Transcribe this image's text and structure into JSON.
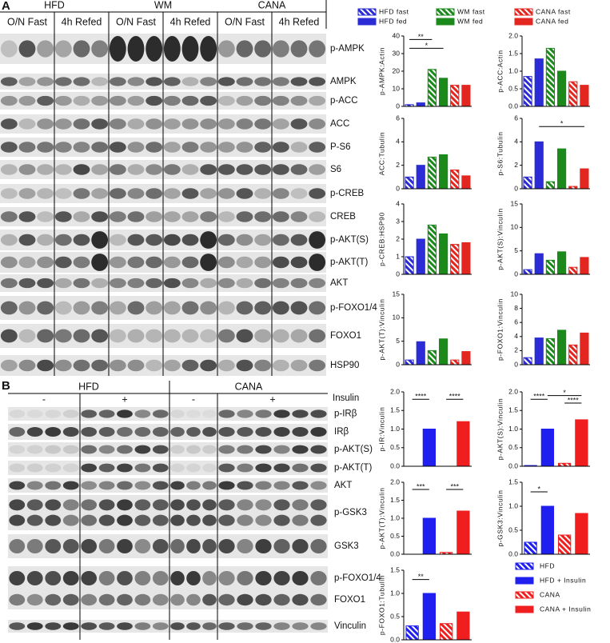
{
  "panel_a": {
    "letter": "A",
    "groups": [
      "HFD",
      "WM",
      "CANA"
    ],
    "conditions": [
      "O/N Fast",
      "4h Refed",
      "O/N Fast",
      "4h Refed",
      "O/N Fast",
      "4h Refed"
    ],
    "blots": [
      "p-AMPK",
      "AMPK",
      "p-ACC",
      "ACC",
      "P-S6",
      "S6",
      "p-CREB",
      "CREB",
      "p-AKT(S)",
      "p-AKT(T)",
      "AKT",
      "p-FOXO1/4",
      "FOXO1",
      "HSP90"
    ],
    "legend": [
      {
        "name": "HFD fast",
        "color": "#2c2cd6",
        "hatched": true
      },
      {
        "name": "WM fast",
        "color": "#1b8a1b",
        "hatched": true
      },
      {
        "name": "CANA fast",
        "color": "#e3261f",
        "hatched": true
      },
      {
        "name": "HFD fed",
        "color": "#2c2cd6",
        "hatched": false
      },
      {
        "name": "WM fed",
        "color": "#1b8a1b",
        "hatched": false
      },
      {
        "name": "CANA fed",
        "color": "#e3261f",
        "hatched": false
      }
    ]
  },
  "panel_b": {
    "letter": "B",
    "groups": [
      "HFD",
      "CANA"
    ],
    "insulin": [
      "-",
      "+",
      "-",
      "+"
    ],
    "insulin_label": "Insulin",
    "blots": [
      "p-IRβ",
      "IRβ",
      "p-AKT(S)",
      "p-AKT(T)",
      "AKT",
      "p-GSK3",
      "GSK3",
      "p-FOXO1/4",
      "FOXO1",
      "Vinculin"
    ],
    "legend": [
      {
        "name": "HFD",
        "color": "#1f1ff0",
        "hatched": true
      },
      {
        "name": "HFD + Insulin",
        "color": "#1f1ff0",
        "hatched": false
      },
      {
        "name": "CANA",
        "color": "#f01e1e",
        "hatched": true
      },
      {
        "name": "CANA + Insulin",
        "color": "#f01e1e",
        "hatched": false
      }
    ]
  },
  "chart_data": [
    {
      "type": "bar",
      "ylabel": "p-AMPK:Actin",
      "values": [
        1,
        2,
        21,
        16,
        12,
        12
      ],
      "colors": [
        "#2c2cd6",
        "#2c2cd6",
        "#1b8a1b",
        "#1b8a1b",
        "#e3261f",
        "#e3261f"
      ],
      "hatched": [
        true,
        false,
        true,
        false,
        true,
        false
      ],
      "ylim": [
        0,
        40
      ],
      "yticks": [
        0,
        10,
        20,
        30,
        40
      ],
      "annotations": [
        {
          "text": "**",
          "from": 0,
          "to": 2,
          "y": 38
        },
        {
          "text": "*",
          "from": 0,
          "to": 3,
          "y": 33
        }
      ]
    },
    {
      "type": "bar",
      "ylabel": "p-ACC:Actin",
      "values": [
        0.85,
        1.35,
        1.65,
        1.0,
        0.7,
        0.6
      ],
      "colors": [
        "#2c2cd6",
        "#2c2cd6",
        "#1b8a1b",
        "#1b8a1b",
        "#e3261f",
        "#e3261f"
      ],
      "hatched": [
        true,
        false,
        true,
        false,
        true,
        false
      ],
      "ylim": [
        0,
        2
      ],
      "yticks": [
        {
          "value": 0,
          "label": "0.0"
        },
        0.5,
        {
          "value": 1,
          "label": "1.0"
        },
        1.5,
        {
          "value": 2,
          "label": "2.0"
        }
      ],
      "annotations": []
    },
    {
      "type": "bar",
      "ylabel": "ACC:Tubulin",
      "values": [
        1.0,
        2.0,
        2.7,
        2.9,
        1.6,
        1.1
      ],
      "colors": [
        "#2c2cd6",
        "#2c2cd6",
        "#1b8a1b",
        "#1b8a1b",
        "#e3261f",
        "#e3261f"
      ],
      "hatched": [
        true,
        false,
        true,
        false,
        true,
        false
      ],
      "ylim": [
        0,
        6
      ],
      "yticks": [
        0,
        2,
        4,
        6
      ],
      "annotations": []
    },
    {
      "type": "bar",
      "ylabel": "p-S6:Tubulin",
      "values": [
        1.0,
        4.0,
        0.6,
        3.4,
        0.2,
        1.7
      ],
      "colors": [
        "#2c2cd6",
        "#2c2cd6",
        "#1b8a1b",
        "#1b8a1b",
        "#e3261f",
        "#e3261f"
      ],
      "hatched": [
        true,
        false,
        true,
        false,
        true,
        false
      ],
      "ylim": [
        0,
        6
      ],
      "yticks": [
        0,
        2,
        4,
        6
      ],
      "annotations": [
        {
          "text": "*",
          "from": 1,
          "to": 5,
          "y": 5.3
        }
      ]
    },
    {
      "type": "bar",
      "ylabel": "p-CREB:HSP90",
      "values": [
        1.0,
        2.0,
        2.8,
        2.3,
        1.7,
        1.8
      ],
      "colors": [
        "#2c2cd6",
        "#2c2cd6",
        "#1b8a1b",
        "#1b8a1b",
        "#e3261f",
        "#e3261f"
      ],
      "hatched": [
        true,
        false,
        true,
        false,
        true,
        false
      ],
      "ylim": [
        0,
        4
      ],
      "yticks": [
        0,
        1,
        2,
        3,
        4
      ],
      "annotations": []
    },
    {
      "type": "bar",
      "ylabel": "p-AKT(S):Vinculin",
      "values": [
        1.0,
        4.4,
        3.0,
        4.8,
        1.5,
        3.6
      ],
      "colors": [
        "#2c2cd6",
        "#2c2cd6",
        "#1b8a1b",
        "#1b8a1b",
        "#e3261f",
        "#e3261f"
      ],
      "hatched": [
        true,
        false,
        true,
        false,
        true,
        false
      ],
      "ylim": [
        0,
        15
      ],
      "yticks": [
        0,
        5,
        10,
        15
      ],
      "annotations": []
    },
    {
      "type": "bar",
      "ylabel": "p-AKT(T):Vinculin",
      "values": [
        1.0,
        4.9,
        3.0,
        5.5,
        1.0,
        2.8
      ],
      "colors": [
        "#2c2cd6",
        "#2c2cd6",
        "#1b8a1b",
        "#1b8a1b",
        "#e3261f",
        "#e3261f"
      ],
      "hatched": [
        true,
        false,
        true,
        false,
        true,
        false
      ],
      "ylim": [
        0,
        15
      ],
      "yticks": [
        0,
        5,
        10,
        15
      ],
      "annotations": []
    },
    {
      "type": "bar",
      "ylabel": "p-FOXO1:Vinculin",
      "values": [
        1.0,
        3.8,
        3.7,
        4.9,
        2.8,
        4.5
      ],
      "colors": [
        "#2c2cd6",
        "#2c2cd6",
        "#1b8a1b",
        "#1b8a1b",
        "#e3261f",
        "#e3261f"
      ],
      "hatched": [
        true,
        false,
        true,
        false,
        true,
        false
      ],
      "ylim": [
        0,
        10
      ],
      "yticks": [
        0,
        2,
        4,
        6,
        8,
        10
      ],
      "annotations": []
    },
    {
      "type": "bar",
      "ylabel": "p-IR:Vinculin",
      "values": [
        0.0,
        1.0,
        0.0,
        1.2
      ],
      "colors": [
        "#1f1ff0",
        "#1f1ff0",
        "#f01e1e",
        "#f01e1e"
      ],
      "hatched": [
        true,
        false,
        true,
        false
      ],
      "ylim": [
        0,
        2
      ],
      "yticks": [
        {
          "value": 0,
          "label": "0.0"
        },
        0.5,
        {
          "value": 1,
          "label": "1.0"
        },
        1.5,
        {
          "value": 2,
          "label": "2.0"
        }
      ],
      "annotations": [
        {
          "text": "****",
          "from": 0,
          "to": 1,
          "y": 1.8
        },
        {
          "text": "****",
          "from": 2,
          "to": 3,
          "y": 1.8
        }
      ]
    },
    {
      "type": "bar",
      "ylabel": "p-AKT(S):Vinculin",
      "values": [
        0.02,
        1.0,
        0.08,
        1.25
      ],
      "colors": [
        "#1f1ff0",
        "#1f1ff0",
        "#f01e1e",
        "#f01e1e"
      ],
      "hatched": [
        true,
        false,
        true,
        false
      ],
      "ylim": [
        0,
        2
      ],
      "yticks": [
        {
          "value": 0,
          "label": "0.0"
        },
        0.5,
        {
          "value": 1,
          "label": "1.0"
        },
        1.5,
        {
          "value": 2,
          "label": "2.0"
        }
      ],
      "annotations": [
        {
          "text": "****",
          "from": 0,
          "to": 1,
          "y": 1.8
        },
        {
          "text": "*",
          "from": 1,
          "to": 3,
          "y": 1.9
        },
        {
          "text": "****",
          "from": 2,
          "to": 3,
          "y": 1.7
        }
      ]
    },
    {
      "type": "bar",
      "ylabel": "p-AKT(T):Vinculin",
      "values": [
        0.0,
        1.0,
        0.05,
        1.2
      ],
      "colors": [
        "#1f1ff0",
        "#1f1ff0",
        "#f01e1e",
        "#f01e1e"
      ],
      "hatched": [
        true,
        false,
        true,
        false
      ],
      "ylim": [
        0,
        2
      ],
      "yticks": [
        {
          "value": 0,
          "label": "0.0"
        },
        0.5,
        {
          "value": 1,
          "label": "1.0"
        },
        1.5,
        {
          "value": 2,
          "label": "2.0"
        }
      ],
      "annotations": [
        {
          "text": "***",
          "from": 0,
          "to": 1,
          "y": 1.8
        },
        {
          "text": "***",
          "from": 2,
          "to": 3,
          "y": 1.8
        }
      ]
    },
    {
      "type": "bar",
      "ylabel": "p-GSK3:Vinculin",
      "values": [
        0.25,
        1.0,
        0.4,
        0.85
      ],
      "colors": [
        "#1f1ff0",
        "#1f1ff0",
        "#f01e1e",
        "#f01e1e"
      ],
      "hatched": [
        true,
        false,
        true,
        false
      ],
      "ylim": [
        0,
        1.5
      ],
      "yticks": [
        {
          "value": 0,
          "label": "0.0"
        },
        0.5,
        {
          "value": 1,
          "label": "1.0"
        },
        1.5
      ],
      "annotations": [
        {
          "text": "*",
          "from": 0,
          "to": 1,
          "y": 1.3
        }
      ]
    },
    {
      "type": "bar",
      "ylabel": "p-FOXO1:Tubulin",
      "values": [
        0.3,
        1.0,
        0.35,
        0.6
      ],
      "colors": [
        "#1f1ff0",
        "#1f1ff0",
        "#f01e1e",
        "#f01e1e"
      ],
      "hatched": [
        true,
        false,
        true,
        false
      ],
      "ylim": [
        0,
        1.5
      ],
      "yticks": [
        {
          "value": 0,
          "label": "0.0"
        },
        0.5,
        {
          "value": 1,
          "label": "1.0"
        },
        1.5
      ],
      "annotations": [
        {
          "text": "**",
          "from": 0,
          "to": 1,
          "y": 1.3
        }
      ]
    }
  ]
}
